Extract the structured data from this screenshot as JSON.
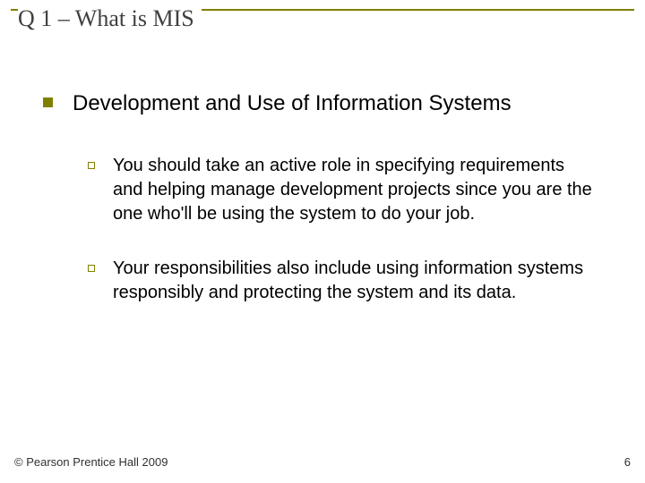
{
  "colors": {
    "olive": "#808000",
    "title_text": "#404040",
    "body_text": "#000000",
    "footer_text": "#303030",
    "background": "#ffffff"
  },
  "typography": {
    "title_family": "Times New Roman",
    "body_family": "Arial",
    "title_size_pt": 20,
    "level1_size_pt": 18,
    "level2_size_pt": 15,
    "footer_size_pt": 10
  },
  "title": "Q 1 – What is MIS",
  "bullets": {
    "level1": {
      "marker": "filled-square",
      "marker_color": "#808000",
      "text": "Development and Use of Information Systems"
    },
    "level2": [
      {
        "marker": "hollow-square",
        "marker_color": "#808000",
        "text": "You should take an active role in specifying requirements and helping manage development projects since you are the one who'll be using the system to do your job."
      },
      {
        "marker": "hollow-square",
        "marker_color": "#808000",
        "text": "Your responsibilities also include using information systems responsibly and protecting the system and its data."
      }
    ]
  },
  "footer": {
    "copyright": "© Pearson Prentice Hall 2009",
    "page_number": "6"
  }
}
